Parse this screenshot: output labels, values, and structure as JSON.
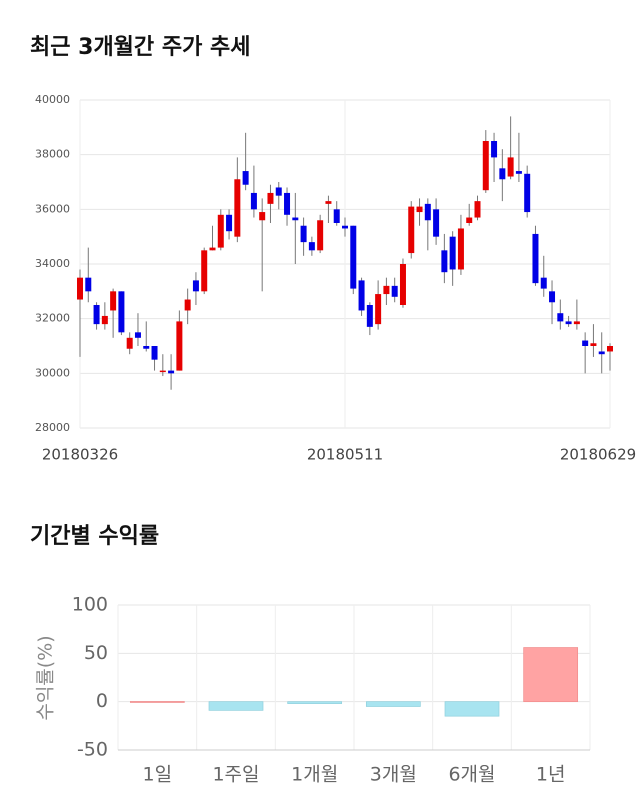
{
  "chart_data": [
    {
      "type": "candlestick",
      "title": "최근 3개월간 주가 추세",
      "categories": [
        "20180326",
        null,
        null,
        null,
        null,
        null,
        null,
        null,
        null,
        null,
        null,
        null,
        null,
        null,
        null,
        null,
        null,
        null,
        null,
        null,
        null,
        null,
        null,
        null,
        null,
        null,
        null,
        null,
        null,
        null,
        null,
        null,
        "20180511",
        null,
        null,
        null,
        null,
        null,
        null,
        null,
        null,
        null,
        null,
        null,
        null,
        null,
        null,
        null,
        null,
        null,
        null,
        null,
        null,
        null,
        null,
        null,
        null,
        null,
        null,
        null,
        null,
        null,
        null,
        null,
        "20180629"
      ],
      "open": [
        32700,
        33500,
        32500,
        31800,
        32300,
        33000,
        30900,
        31500,
        31000,
        31000,
        30100,
        30100,
        30100,
        32300,
        33400,
        33000,
        34500,
        34600,
        35800,
        35000,
        37400,
        36600,
        35600,
        36200,
        36800,
        36600,
        35700,
        35400,
        34800,
        34500,
        36200,
        36000,
        35400,
        35400,
        33400,
        32500,
        31800,
        32900,
        33200,
        32500,
        34400,
        35900,
        36200,
        36000,
        34500,
        35000,
        33800,
        35500,
        35700,
        36700,
        38500,
        37500,
        37200,
        37400,
        37300,
        35100,
        33500,
        33000,
        32200,
        31900,
        31800,
        31200,
        31000,
        30800,
        30800
      ],
      "high": [
        33800,
        34600,
        32600,
        32600,
        33100,
        33000,
        31500,
        32200,
        31900,
        31000,
        30700,
        30700,
        32300,
        33100,
        33700,
        34600,
        35400,
        36000,
        36000,
        37900,
        38800,
        37600,
        36400,
        36900,
        37000,
        36800,
        36600,
        35700,
        35000,
        35800,
        36500,
        36300,
        35700,
        35400,
        33500,
        32600,
        33400,
        33500,
        33500,
        34200,
        36300,
        36400,
        36400,
        36400,
        35100,
        35200,
        35800,
        36200,
        36500,
        38900,
        38800,
        38200,
        39400,
        38800,
        37600,
        35400,
        34300,
        33400,
        32700,
        32100,
        32700,
        31500,
        31800,
        31500,
        31100
      ],
      "low": [
        30600,
        32600,
        31600,
        31600,
        31300,
        31400,
        30700,
        31000,
        30800,
        30100,
        29900,
        29400,
        30100,
        31800,
        32500,
        32900,
        34500,
        34500,
        34900,
        34800,
        36700,
        35700,
        33000,
        35500,
        36000,
        35400,
        34000,
        34300,
        34300,
        34400,
        35500,
        35400,
        35000,
        32900,
        32100,
        31400,
        31600,
        32500,
        32600,
        32400,
        34200,
        35400,
        34500,
        34700,
        33300,
        33200,
        33600,
        35400,
        35600,
        36600,
        37000,
        36300,
        37100,
        37000,
        35700,
        33200,
        32800,
        31800,
        31600,
        31700,
        31600,
        30000,
        30600,
        30000,
        30100
      ],
      "close": [
        33500,
        33000,
        31800,
        32100,
        33000,
        31500,
        31300,
        31300,
        30900,
        30500,
        30100,
        30000,
        31900,
        32700,
        33000,
        34500,
        34600,
        35800,
        35200,
        37100,
        36900,
        36000,
        35900,
        36600,
        36500,
        35800,
        35600,
        34800,
        34500,
        35600,
        36300,
        35500,
        35300,
        33100,
        32300,
        31700,
        32900,
        33200,
        32800,
        34000,
        36100,
        36100,
        35600,
        35000,
        33700,
        33800,
        35300,
        35700,
        36300,
        38500,
        37900,
        37100,
        37900,
        37300,
        35900,
        33300,
        33100,
        32600,
        31900,
        31800,
        31900,
        31000,
        31100,
        30700,
        31000
      ],
      "up_color": "#e60000",
      "down_color": "#0000e6",
      "ylim": [
        28000,
        40000
      ],
      "yticks": [
        28000,
        30000,
        32000,
        34000,
        36000,
        38000,
        40000
      ],
      "grid": true
    },
    {
      "type": "bar",
      "title": "기간별 수익률",
      "ylabel": "수익률(%)",
      "categories": [
        "1일",
        "1주일",
        "1개월",
        "3개월",
        "6개월",
        "1년"
      ],
      "values": [
        0.2,
        -9,
        -2,
        -5,
        -15,
        56
      ],
      "positive_color": "#ffa3a3",
      "negative_color": "#a8e4f0",
      "ylim": [
        -50,
        100
      ],
      "yticks": [
        -50,
        0,
        50,
        100
      ],
      "grid": true
    }
  ]
}
